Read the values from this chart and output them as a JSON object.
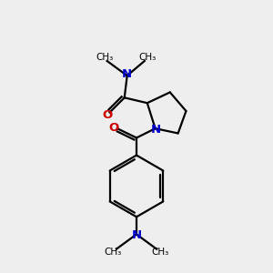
{
  "background_color": "#eeeeee",
  "bond_color": "#000000",
  "nitrogen_color": "#0000cc",
  "oxygen_color": "#cc0000",
  "line_width": 1.6,
  "figsize": [
    3.0,
    3.0
  ],
  "dpi": 100,
  "xlim": [
    0,
    10
  ],
  "ylim": [
    0,
    10
  ]
}
